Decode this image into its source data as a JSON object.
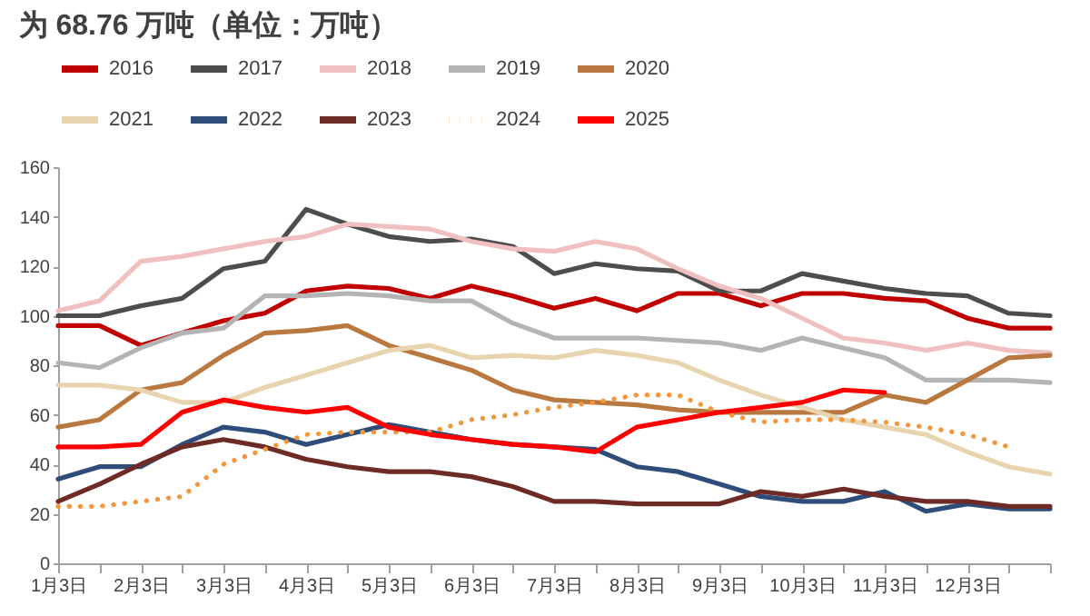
{
  "chart_data": {
    "type": "line",
    "title": "为 68.76 万吨（单位：万吨）",
    "categories": [
      "1月3日",
      null,
      "2月3日",
      null,
      "3月3日",
      null,
      "4月3日",
      null,
      "5月3日",
      null,
      "6月3日",
      null,
      "7月3日",
      null,
      "8月3日",
      null,
      "9月3日",
      null,
      "10月3日",
      null,
      "11月3日",
      null,
      "12月3日",
      null,
      null
    ],
    "ylim": [
      0,
      160
    ],
    "yticks": [
      0,
      20,
      40,
      60,
      80,
      100,
      120,
      140,
      160
    ],
    "grid": false,
    "legend": "top",
    "series": [
      {
        "name": "2016",
        "color": "#c00000",
        "values": [
          96,
          96,
          88,
          93,
          98,
          101,
          110,
          112,
          111,
          107,
          112,
          108,
          103,
          107,
          102,
          109,
          109,
          104,
          109,
          109,
          107,
          106,
          99,
          95,
          95
        ]
      },
      {
        "name": "2017",
        "color": "#4d4d4d",
        "values": [
          100,
          100,
          104,
          107,
          119,
          122,
          143,
          137,
          132,
          130,
          131,
          128,
          117,
          121,
          119,
          118,
          110,
          110,
          117,
          114,
          111,
          109,
          108,
          101,
          100
        ]
      },
      {
        "name": "2018",
        "color": "#f0c0c0",
        "values": [
          102,
          106,
          122,
          124,
          127,
          130,
          132,
          137,
          136,
          135,
          130,
          127,
          126,
          130,
          127,
          119,
          112,
          107,
          99,
          91,
          89,
          86,
          89,
          86,
          85
        ]
      },
      {
        "name": "2019",
        "color": "#b4b4b4",
        "values": [
          81,
          79,
          87,
          93,
          95,
          108,
          108,
          109,
          108,
          106,
          106,
          97,
          91,
          91,
          91,
          90,
          89,
          86,
          91,
          87,
          83,
          74,
          74,
          74,
          73
        ]
      },
      {
        "name": "2020",
        "color": "#b87840",
        "values": [
          55,
          58,
          70,
          73,
          84,
          93,
          94,
          96,
          88,
          83,
          78,
          70,
          66,
          65,
          64,
          62,
          61,
          61,
          61,
          61,
          68,
          65,
          74,
          83,
          84
        ]
      },
      {
        "name": "2021",
        "color": "#e8d5b0",
        "values": [
          72,
          72,
          70,
          65,
          65,
          71,
          76,
          81,
          86,
          88,
          83,
          84,
          83,
          86,
          84,
          81,
          74,
          68,
          63,
          58,
          55,
          52,
          45,
          39,
          36
        ]
      },
      {
        "name": "2022",
        "color": "#2e4d7a",
        "values": [
          34,
          39,
          39,
          48,
          55,
          53,
          48,
          52,
          56,
          53,
          50,
          48,
          47,
          46,
          39,
          37,
          32,
          27,
          25,
          25,
          29,
          21,
          24,
          22,
          22
        ]
      },
      {
        "name": "2023",
        "color": "#6e2a24",
        "values": [
          25,
          32,
          40,
          47,
          50,
          47,
          42,
          39,
          37,
          37,
          35,
          31,
          25,
          25,
          24,
          24,
          24,
          29,
          27,
          30,
          27,
          25,
          25,
          23,
          23
        ]
      },
      {
        "name": "2024",
        "color": "#f5963c",
        "line_style": "dotted",
        "values": [
          23,
          23,
          25,
          27,
          40,
          46,
          52,
          53,
          53,
          53,
          58,
          60,
          63,
          65,
          68,
          68,
          61,
          57,
          58,
          58,
          57,
          55,
          52,
          47,
          null
        ]
      },
      {
        "name": "2025",
        "color": "#ff0000",
        "values": [
          47,
          47,
          48,
          61,
          66,
          63,
          61,
          63,
          55,
          52,
          50,
          48,
          47,
          45,
          55,
          58,
          61,
          63,
          65,
          70,
          69,
          null,
          null,
          null,
          null
        ]
      }
    ]
  }
}
